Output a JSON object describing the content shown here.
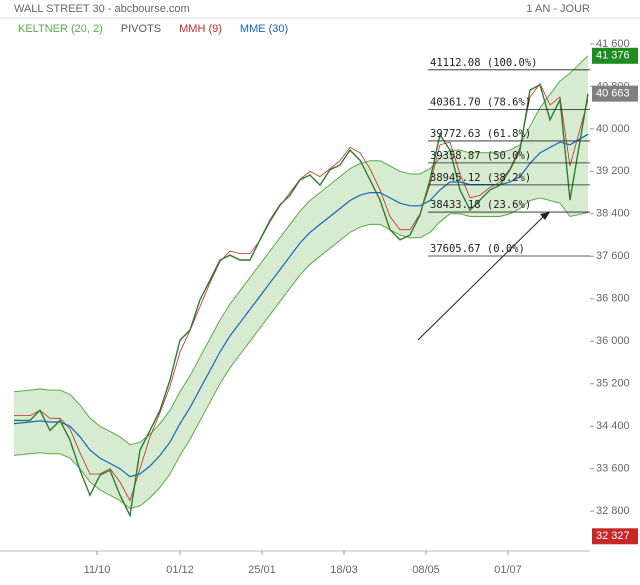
{
  "chart_data": {
    "type": "line",
    "title": "WALL STREET 30 - abcbourse.com",
    "period": "1 AN - JOUR",
    "x": [
      0,
      8,
      13,
      18,
      23,
      28,
      33,
      38,
      43,
      48,
      53,
      58,
      63,
      68,
      73,
      78,
      83,
      88,
      93,
      98,
      103,
      108,
      113,
      118,
      123,
      128,
      133,
      138,
      143,
      148,
      153,
      158,
      163,
      168,
      173,
      178,
      183,
      188,
      193,
      198,
      203,
      208,
      213,
      218,
      223,
      228,
      233,
      238,
      243,
      248,
      253,
      258,
      263,
      268,
      273,
      278,
      287
    ],
    "xlim": [
      0,
      288
    ],
    "xticks": [
      {
        "value": 41.5,
        "label": "11/10"
      },
      {
        "value": 83,
        "label": "01/12"
      },
      {
        "value": 124,
        "label": "25/01"
      },
      {
        "value": 165,
        "label": "18/03"
      },
      {
        "value": 206,
        "label": "08/05"
      },
      {
        "value": 247,
        "label": "01/07"
      }
    ],
    "ylim": [
      32050,
      42050
    ],
    "yticks": [
      {
        "value": 32800,
        "label": "32 800"
      },
      {
        "value": 33600,
        "label": "33 600"
      },
      {
        "value": 34400,
        "label": "34 400"
      },
      {
        "value": 35200,
        "label": "35 200"
      },
      {
        "value": 36000,
        "label": "36 000"
      },
      {
        "value": 36800,
        "label": "36 800"
      },
      {
        "value": 37600,
        "label": "37 600"
      },
      {
        "value": 38400,
        "label": "38 400"
      },
      {
        "value": 39200,
        "label": "39 200"
      },
      {
        "value": 40000,
        "label": "40 000"
      },
      {
        "value": 40800,
        "label": "40 800"
      },
      {
        "value": 41600,
        "label": "41 600"
      }
    ],
    "price": {
      "color": "#2e7d32",
      "values": [
        34510,
        34510,
        34700,
        34320,
        34510,
        34140,
        33570,
        33100,
        33480,
        33570,
        33100,
        32720,
        33950,
        34320,
        34700,
        35270,
        36020,
        36210,
        36780,
        37150,
        37530,
        37620,
        37530,
        37530,
        37910,
        38280,
        38570,
        38750,
        39040,
        39130,
        38940,
        39230,
        39320,
        39600,
        39410,
        39040,
        38660,
        38100,
        37910,
        38000,
        38380,
        39040,
        39890,
        39600,
        38850,
        38470,
        38660,
        38850,
        38940,
        39230,
        39600,
        40730,
        40830,
        40170,
        40550,
        38660,
        40663
      ]
    },
    "keltner": {
      "name": "KELTNER (20, 2)",
      "color": "#5aaa4a",
      "fill": "#cfe8c8",
      "upper": [
        35050,
        35080,
        35100,
        35080,
        35080,
        35000,
        34800,
        34550,
        34400,
        34300,
        34200,
        34050,
        34100,
        34250,
        34450,
        34700,
        35050,
        35350,
        35700,
        36050,
        36400,
        36700,
        36950,
        37200,
        37450,
        37700,
        37950,
        38200,
        38450,
        38650,
        38800,
        38950,
        39100,
        39250,
        39350,
        39400,
        39400,
        39300,
        39200,
        39150,
        39150,
        39250,
        39450,
        39600,
        39600,
        39550,
        39550,
        39550,
        39550,
        39600,
        39700,
        40050,
        40400,
        40650,
        40900,
        41050,
        41376
      ],
      "lower": [
        33850,
        33880,
        33900,
        33880,
        33880,
        33800,
        33600,
        33350,
        33200,
        33100,
        33000,
        32850,
        32900,
        33050,
        33250,
        33500,
        33850,
        34150,
        34500,
        34850,
        35200,
        35500,
        35750,
        36000,
        36250,
        36500,
        36750,
        37000,
        37250,
        37450,
        37600,
        37750,
        37900,
        38050,
        38150,
        38200,
        38200,
        38100,
        38000,
        37950,
        37950,
        38050,
        38250,
        38400,
        38400,
        38350,
        38350,
        38350,
        38350,
        38400,
        38500,
        38650,
        38700,
        38650,
        38600,
        38350,
        38424
      ]
    },
    "series": [
      {
        "name": "MMH (9)",
        "color": "#c62828",
        "values": [
          34600,
          34600,
          34700,
          34550,
          34550,
          34350,
          33900,
          33500,
          33500,
          33600,
          33350,
          33000,
          33600,
          34200,
          34650,
          35150,
          35800,
          36200,
          36650,
          37100,
          37500,
          37700,
          37650,
          37650,
          37900,
          38250,
          38550,
          38800,
          39050,
          39200,
          39100,
          39250,
          39400,
          39650,
          39550,
          39250,
          38850,
          38350,
          38100,
          38100,
          38400,
          38950,
          39700,
          39750,
          39150,
          38700,
          38750,
          38900,
          39000,
          39250,
          39650,
          40600,
          40850,
          40450,
          40600,
          39300,
          40550
        ]
      },
      {
        "name": "MME (30)",
        "color": "#1565c0",
        "values": [
          34450,
          34480,
          34500,
          34480,
          34480,
          34400,
          34200,
          33950,
          33800,
          33700,
          33600,
          33450,
          33500,
          33650,
          33850,
          34100,
          34450,
          34750,
          35100,
          35450,
          35800,
          36100,
          36350,
          36600,
          36850,
          37100,
          37350,
          37600,
          37850,
          38050,
          38200,
          38350,
          38500,
          38650,
          38750,
          38800,
          38800,
          38700,
          38600,
          38550,
          38550,
          38650,
          38850,
          39000,
          39000,
          38950,
          38950,
          38950,
          38950,
          39000,
          39100,
          39350,
          39550,
          39650,
          39750,
          39700,
          39900
        ]
      }
    ],
    "pivots": {
      "name": "PIVOTS",
      "color": "#555555",
      "levels": [
        {
          "value": 41112.08,
          "label": "41112.08 (100.0%)"
        },
        {
          "value": 40361.7,
          "label": "40361.70 (78.6%)"
        },
        {
          "value": 39772.63,
          "label": "39772.63 (61.8%)"
        },
        {
          "value": 39358.87,
          "label": "39358.87 (50.0%)"
        },
        {
          "value": 38945.12,
          "label": "38945.12 (38.2%)"
        },
        {
          "value": 38433.18,
          "label": "38433.18 (23.6%)"
        },
        {
          "value": 37605.67,
          "label": "37605.67 (0.0%)"
        }
      ]
    },
    "price_tags": [
      {
        "value": 41376,
        "label": "41 376",
        "color": "#1e8c1e"
      },
      {
        "value": 40663,
        "label": "40 663",
        "color": "#808080"
      },
      {
        "value": 32327,
        "label": "32 327",
        "color": "#c62828"
      }
    ]
  }
}
